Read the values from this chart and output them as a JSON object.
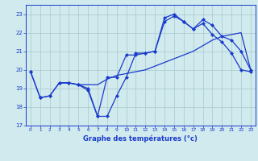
{
  "bg_color": "#d0eaed",
  "line_color": "#1a3acc",
  "grid_color": "#a8c8cc",
  "xlabel": "Graphe des températures (°c)",
  "tick_color": "#1a3acc",
  "x_ticks": [
    0,
    1,
    2,
    3,
    4,
    5,
    6,
    7,
    8,
    9,
    10,
    11,
    12,
    13,
    14,
    15,
    16,
    17,
    18,
    19,
    20,
    21,
    22,
    23
  ],
  "ylim": [
    17,
    23.5
  ],
  "xlim": [
    -0.5,
    23.5
  ],
  "yticks": [
    17,
    18,
    19,
    20,
    21,
    22,
    23
  ],
  "series": [
    {
      "x": [
        0,
        1,
        2,
        3,
        4,
        5,
        6,
        7,
        8,
        9,
        10,
        11,
        12,
        13,
        14,
        15,
        16,
        17,
        18,
        19,
        20,
        21,
        22,
        23
      ],
      "y": [
        19.9,
        18.5,
        18.6,
        19.3,
        19.3,
        19.2,
        18.9,
        17.5,
        17.5,
        18.6,
        19.6,
        20.9,
        20.9,
        21.0,
        22.6,
        22.9,
        22.6,
        22.2,
        22.5,
        21.9,
        21.5,
        20.9,
        20.0,
        19.9
      ],
      "marker": "D",
      "markersize": 2.0,
      "linewidth": 0.9
    },
    {
      "x": [
        0,
        1,
        2,
        3,
        4,
        5,
        6,
        7,
        8,
        9,
        10,
        11,
        12,
        13,
        14,
        15,
        16,
        17,
        18,
        19,
        20,
        21,
        22,
        23
      ],
      "y": [
        19.9,
        18.5,
        18.6,
        19.3,
        19.3,
        19.2,
        19.0,
        17.5,
        19.6,
        19.6,
        20.8,
        20.8,
        20.9,
        21.0,
        22.8,
        23.0,
        22.6,
        22.2,
        22.7,
        22.4,
        21.8,
        21.6,
        21.0,
        20.0
      ],
      "marker": "D",
      "markersize": 2.0,
      "linewidth": 0.9
    },
    {
      "x": [
        3,
        4,
        5,
        6,
        7,
        8,
        9,
        10,
        11,
        12,
        13,
        14,
        15,
        16,
        17,
        18,
        19,
        20,
        21,
        22,
        23
      ],
      "y": [
        19.3,
        19.3,
        19.2,
        19.2,
        19.2,
        19.5,
        19.7,
        19.8,
        19.9,
        20.0,
        20.2,
        20.4,
        20.6,
        20.8,
        21.0,
        21.3,
        21.6,
        21.8,
        21.9,
        22.0,
        20.0
      ],
      "marker": null,
      "markersize": 0,
      "linewidth": 0.9
    }
  ]
}
